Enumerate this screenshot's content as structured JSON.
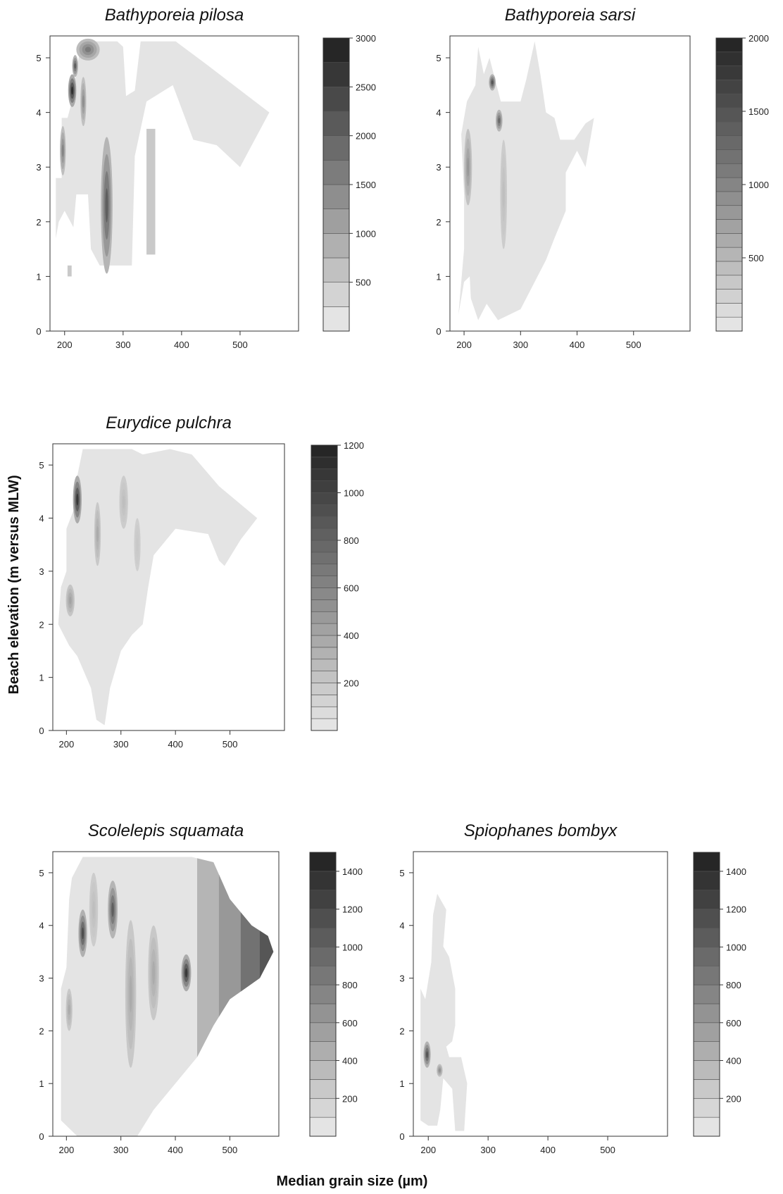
{
  "figure": {
    "ylabel": "Beach elevation (m versus MLW)",
    "xlabel": "Median grain size (µm)"
  },
  "chart_data": [
    {
      "type": "heatmap",
      "title": "Bathyporeia pilosa",
      "x_ticks": [
        200,
        300,
        400,
        500
      ],
      "y_ticks": [
        0,
        1,
        2,
        3,
        4,
        5
      ],
      "xlim": [
        175,
        600
      ],
      "ylim": [
        0,
        5.4
      ],
      "colorbar": {
        "min": 0,
        "max": 3000,
        "levels": 12,
        "ticks": [
          500,
          1000,
          1500,
          2000,
          2500,
          3000
        ]
      },
      "footprint": [
        [
          185,
          1.7
        ],
        [
          185,
          2.8
        ],
        [
          195,
          2.8
        ],
        [
          195,
          3.9
        ],
        [
          205,
          3.9
        ],
        [
          215,
          4.3
        ],
        [
          220,
          4.8
        ],
        [
          230,
          5.3
        ],
        [
          290,
          5.3
        ],
        [
          300,
          5.2
        ],
        [
          305,
          4.3
        ],
        [
          320,
          4.4
        ],
        [
          330,
          5.3
        ],
        [
          390,
          5.3
        ],
        [
          440,
          4.9
        ],
        [
          550,
          4.0
        ],
        [
          500,
          3.0
        ],
        [
          460,
          3.4
        ],
        [
          420,
          3.5
        ],
        [
          385,
          4.5
        ],
        [
          340,
          4.2
        ],
        [
          320,
          3.2
        ],
        [
          315,
          1.2
        ],
        [
          260,
          1.2
        ],
        [
          245,
          1.5
        ],
        [
          240,
          2.5
        ],
        [
          220,
          2.5
        ],
        [
          215,
          1.9
        ],
        [
          200,
          2.2
        ],
        [
          190,
          2.0
        ]
      ],
      "patches": [
        [
          205,
          1.0,
          212,
          1.2,
          0.14
        ],
        [
          340,
          1.4,
          355,
          3.7,
          0.14
        ]
      ],
      "hotspots": [
        {
          "x": 272,
          "y": 2.3,
          "rx": 10,
          "ry": 1.25,
          "level": 0.7
        },
        {
          "x": 197,
          "y": 3.3,
          "rx": 5,
          "ry": 0.45,
          "level": 0.5
        },
        {
          "x": 213,
          "y": 4.4,
          "rx": 7,
          "ry": 0.3,
          "level": 0.95
        },
        {
          "x": 232,
          "y": 4.2,
          "rx": 5,
          "ry": 0.45,
          "level": 0.45
        },
        {
          "x": 240,
          "y": 5.15,
          "rx": 20,
          "ry": 0.2,
          "level": 0.55
        },
        {
          "x": 218,
          "y": 4.85,
          "rx": 5,
          "ry": 0.2,
          "level": 0.7
        }
      ]
    },
    {
      "type": "heatmap",
      "title": "Bathyporeia sarsi",
      "x_ticks": [
        200,
        300,
        400,
        500
      ],
      "y_ticks": [
        0,
        1,
        2,
        3,
        4,
        5
      ],
      "xlim": [
        175,
        600
      ],
      "ylim": [
        0,
        5.4
      ],
      "colorbar": {
        "min": 0,
        "max": 2000,
        "levels": 21,
        "ticks": [
          500,
          1000,
          1500,
          2000
        ]
      },
      "footprint": [
        [
          190,
          0.3
        ],
        [
          200,
          1.5
        ],
        [
          200,
          2.5
        ],
        [
          195,
          3.6
        ],
        [
          205,
          4.2
        ],
        [
          220,
          4.5
        ],
        [
          225,
          5.2
        ],
        [
          235,
          4.7
        ],
        [
          245,
          5.0
        ],
        [
          265,
          4.2
        ],
        [
          300,
          4.2
        ],
        [
          310,
          4.6
        ],
        [
          325,
          5.3
        ],
        [
          335,
          4.7
        ],
        [
          345,
          4.0
        ],
        [
          360,
          3.9
        ],
        [
          370,
          3.5
        ],
        [
          395,
          3.5
        ],
        [
          415,
          3.8
        ],
        [
          430,
          3.9
        ],
        [
          415,
          3.0
        ],
        [
          400,
          3.3
        ],
        [
          380,
          2.9
        ],
        [
          380,
          2.2
        ],
        [
          360,
          1.7
        ],
        [
          345,
          1.3
        ],
        [
          300,
          0.4
        ],
        [
          260,
          0.2
        ],
        [
          240,
          0.5
        ],
        [
          225,
          0.2
        ],
        [
          212,
          0.6
        ],
        [
          210,
          1.0
        ],
        [
          200,
          0.9
        ]
      ],
      "patches": [],
      "hotspots": [
        {
          "x": 207,
          "y": 3.0,
          "rx": 7,
          "ry": 0.7,
          "level": 0.4
        },
        {
          "x": 250,
          "y": 4.55,
          "rx": 6,
          "ry": 0.15,
          "level": 0.75
        },
        {
          "x": 262,
          "y": 3.85,
          "rx": 6,
          "ry": 0.2,
          "level": 0.65
        },
        {
          "x": 270,
          "y": 2.5,
          "rx": 6,
          "ry": 1.0,
          "level": 0.2
        }
      ]
    },
    {
      "type": "heatmap",
      "title": "Eurydice pulchra",
      "x_ticks": [
        200,
        300,
        400,
        500
      ],
      "y_ticks": [
        0,
        1,
        2,
        3,
        4,
        5
      ],
      "xlim": [
        175,
        600
      ],
      "ylim": [
        0,
        5.4
      ],
      "colorbar": {
        "min": 0,
        "max": 1200,
        "levels": 24,
        "ticks": [
          200,
          400,
          600,
          800,
          1000,
          1200
        ]
      },
      "footprint": [
        [
          185,
          2.0
        ],
        [
          190,
          2.7
        ],
        [
          200,
          3.0
        ],
        [
          200,
          3.8
        ],
        [
          215,
          4.2
        ],
        [
          220,
          4.8
        ],
        [
          230,
          5.3
        ],
        [
          320,
          5.3
        ],
        [
          340,
          5.2
        ],
        [
          390,
          5.3
        ],
        [
          430,
          5.2
        ],
        [
          480,
          4.6
        ],
        [
          550,
          4.0
        ],
        [
          520,
          3.6
        ],
        [
          490,
          3.1
        ],
        [
          480,
          3.2
        ],
        [
          460,
          3.7
        ],
        [
          400,
          3.8
        ],
        [
          360,
          3.3
        ],
        [
          350,
          2.7
        ],
        [
          340,
          2.0
        ],
        [
          320,
          1.8
        ],
        [
          300,
          1.5
        ],
        [
          280,
          0.8
        ],
        [
          270,
          0.1
        ],
        [
          255,
          0.2
        ],
        [
          245,
          0.8
        ],
        [
          220,
          1.4
        ],
        [
          205,
          1.6
        ],
        [
          195,
          1.8
        ]
      ],
      "patches": [],
      "hotspots": [
        {
          "x": 220,
          "y": 4.35,
          "rx": 8,
          "ry": 0.45,
          "level": 0.9
        },
        {
          "x": 207,
          "y": 2.45,
          "rx": 8,
          "ry": 0.3,
          "level": 0.35
        },
        {
          "x": 257,
          "y": 3.7,
          "rx": 6,
          "ry": 0.6,
          "level": 0.3
        },
        {
          "x": 305,
          "y": 4.3,
          "rx": 8,
          "ry": 0.5,
          "level": 0.2
        },
        {
          "x": 330,
          "y": 3.5,
          "rx": 6,
          "ry": 0.5,
          "level": 0.15
        }
      ]
    },
    {
      "type": "heatmap",
      "title": "Scolelepis squamata",
      "x_ticks": [
        200,
        300,
        400,
        500
      ],
      "y_ticks": [
        0,
        1,
        2,
        3,
        4,
        5
      ],
      "xlim": [
        175,
        590
      ],
      "ylim": [
        0,
        5.4
      ],
      "colorbar": {
        "min": 0,
        "max": 1500,
        "levels": 15,
        "ticks": [
          200,
          400,
          600,
          800,
          1000,
          1200,
          1400
        ]
      },
      "footprint": [
        [
          190,
          0.3
        ],
        [
          190,
          2.8
        ],
        [
          200,
          3.2
        ],
        [
          205,
          4.5
        ],
        [
          210,
          4.9
        ],
        [
          230,
          5.3
        ],
        [
          430,
          5.3
        ],
        [
          470,
          5.2
        ],
        [
          500,
          4.5
        ],
        [
          540,
          4.0
        ],
        [
          570,
          3.8
        ],
        [
          580,
          3.5
        ],
        [
          555,
          3.0
        ],
        [
          500,
          2.6
        ],
        [
          470,
          2.1
        ],
        [
          440,
          1.5
        ],
        [
          400,
          1.0
        ],
        [
          360,
          0.5
        ],
        [
          330,
          0.0
        ],
        [
          220,
          0.0
        ],
        [
          210,
          0.1
        ]
      ],
      "patches": [],
      "bands": [
        {
          "x0": 440,
          "level": 0.25
        },
        {
          "x0": 480,
          "level": 0.4
        },
        {
          "x0": 520,
          "level": 0.6
        },
        {
          "x0": 555,
          "level": 0.75
        }
      ],
      "hotspots": [
        {
          "x": 230,
          "y": 3.85,
          "rx": 8,
          "ry": 0.45,
          "level": 0.8
        },
        {
          "x": 285,
          "y": 4.3,
          "rx": 9,
          "ry": 0.55,
          "level": 0.7
        },
        {
          "x": 420,
          "y": 3.1,
          "rx": 9,
          "ry": 0.35,
          "level": 0.9
        },
        {
          "x": 205,
          "y": 2.4,
          "rx": 6,
          "ry": 0.4,
          "level": 0.3
        },
        {
          "x": 318,
          "y": 2.7,
          "rx": 10,
          "ry": 1.4,
          "level": 0.3
        },
        {
          "x": 360,
          "y": 3.1,
          "rx": 10,
          "ry": 0.9,
          "level": 0.3
        },
        {
          "x": 250,
          "y": 4.3,
          "rx": 8,
          "ry": 0.7,
          "level": 0.2
        }
      ]
    },
    {
      "type": "heatmap",
      "title": "Spiophanes bombyx",
      "x_ticks": [
        200,
        300,
        400,
        500
      ],
      "y_ticks": [
        0,
        1,
        2,
        3,
        4,
        5
      ],
      "xlim": [
        175,
        600
      ],
      "ylim": [
        0,
        5.4
      ],
      "colorbar": {
        "min": 0,
        "max": 1500,
        "levels": 15,
        "ticks": [
          200,
          400,
          600,
          800,
          1000,
          1200,
          1400
        ]
      },
      "footprint": [
        [
          187,
          0.3
        ],
        [
          187,
          2.8
        ],
        [
          195,
          2.6
        ],
        [
          205,
          3.3
        ],
        [
          208,
          4.2
        ],
        [
          215,
          4.6
        ],
        [
          230,
          4.3
        ],
        [
          225,
          3.6
        ],
        [
          235,
          3.4
        ],
        [
          245,
          2.8
        ],
        [
          245,
          2.1
        ],
        [
          240,
          1.8
        ],
        [
          230,
          1.7
        ],
        [
          235,
          1.5
        ],
        [
          255,
          1.5
        ],
        [
          265,
          1.0
        ],
        [
          260,
          0.1
        ],
        [
          245,
          0.1
        ],
        [
          240,
          0.9
        ],
        [
          225,
          1.1
        ],
        [
          220,
          0.5
        ],
        [
          215,
          0.2
        ],
        [
          200,
          0.2
        ]
      ],
      "patches": [],
      "hotspots": [
        {
          "x": 198,
          "y": 1.55,
          "rx": 6,
          "ry": 0.25,
          "level": 0.75
        },
        {
          "x": 219,
          "y": 1.25,
          "rx": 5,
          "ry": 0.12,
          "level": 0.45
        }
      ]
    }
  ]
}
